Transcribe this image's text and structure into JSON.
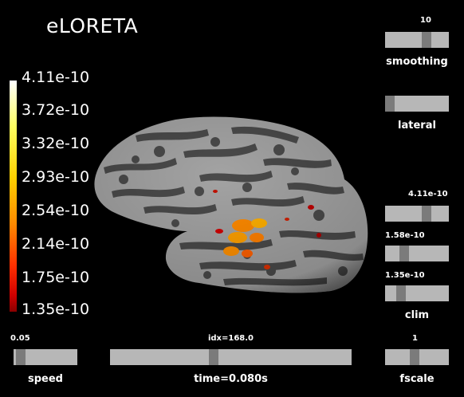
{
  "title": "eLORETA",
  "colorbar": {
    "labels": [
      "4.11e-10",
      "3.72e-10",
      "3.32e-10",
      "2.93e-10",
      "2.54e-10",
      "2.14e-10",
      "1.75e-10",
      "1.35e-10"
    ],
    "colors": [
      "#ffffff",
      "#ffff60",
      "#ffd000",
      "#ff8a00",
      "#ff3000",
      "#d00000",
      "#8a0000"
    ]
  },
  "sliders": {
    "smoothing": {
      "label": "smoothing",
      "value": "10",
      "level": 0.5
    },
    "lateral": {
      "label": "lateral",
      "value": "",
      "level": 0.0
    },
    "clim_max": {
      "label": "",
      "value": "4.11e-10",
      "level": 0.6
    },
    "clim_mid": {
      "label": "",
      "value": "1.58e-10",
      "level": 0.22
    },
    "clim_min": {
      "label": "clim",
      "value": "1.35e-10",
      "level": 0.18
    },
    "speed": {
      "label": "speed",
      "value": "0.05",
      "level": 0.05
    },
    "time": {
      "label": "time=0.080s",
      "value": "idx=168.0",
      "level": 0.41
    },
    "fscale": {
      "label": "fscale",
      "value": "1",
      "level": 0.5
    }
  },
  "colors": {
    "background": "#000000",
    "slider_track": "#b7b7b7",
    "slider_handle": "#7b7b7b",
    "brain_sulci": "#4a4a4a",
    "brain_gyri": "#a3a3a3"
  }
}
